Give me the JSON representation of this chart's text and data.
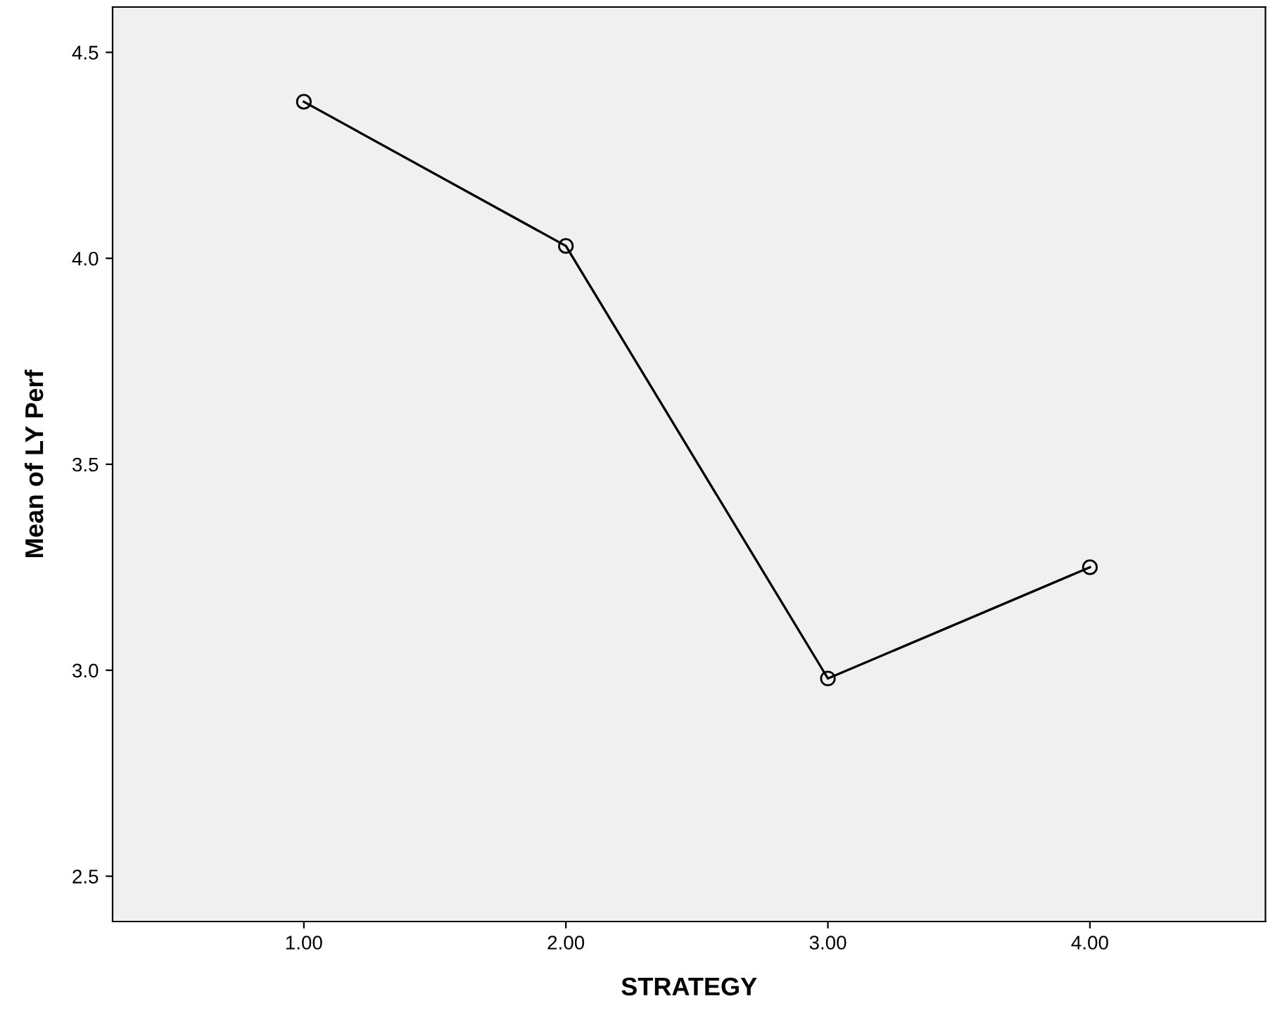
{
  "chart_data": {
    "type": "line",
    "xlabel": "STRATEGY",
    "ylabel": "Mean of LY Perf",
    "categories": [
      "1.00",
      "2.00",
      "3.00",
      "4.00"
    ],
    "series": [
      {
        "color": "#000000",
        "values": [
          4.38,
          4.03,
          2.98,
          3.25
        ]
      }
    ],
    "ylim": [
      2.39,
      4.61
    ],
    "yticks": [
      {
        "value": 2.5,
        "label": "2.5"
      },
      {
        "value": 3,
        "label": "3.0"
      },
      {
        "value": 3.5,
        "label": "3.5"
      },
      {
        "value": 4,
        "label": "4.0"
      },
      {
        "value": 4.5,
        "label": "4.5"
      }
    ],
    "marker": "circle",
    "line_style": "solid",
    "grid": false,
    "legend": false
  }
}
